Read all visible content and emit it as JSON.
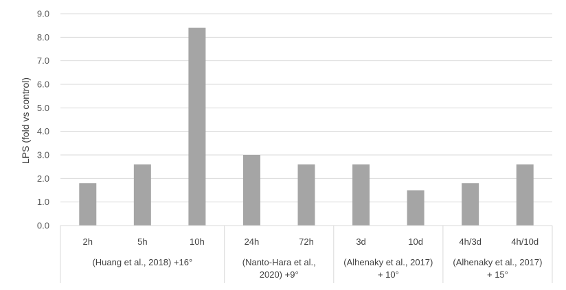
{
  "chart_data": {
    "type": "bar",
    "ylabel": "LPS (fold vs control)",
    "ylim": [
      0,
      9
    ],
    "yticks": [
      "0.0",
      "1.0",
      "2.0",
      "3.0",
      "4.0",
      "5.0",
      "6.0",
      "7.0",
      "8.0",
      "9.0"
    ],
    "grid": true,
    "bar_color": "#a5a5a5",
    "categories": [
      "2h",
      "5h",
      "10h",
      "24h",
      "72h",
      "3d",
      "10d",
      "4h/3d",
      "4h/10d"
    ],
    "values": [
      1.8,
      2.6,
      8.4,
      3.0,
      2.6,
      2.6,
      1.5,
      1.8,
      2.6
    ],
    "groups": [
      {
        "lines": [
          "(Huang et al., 2018) +16°"
        ],
        "count": 3
      },
      {
        "lines": [
          "(Nanto-Hara et al.,",
          "2020) +9°"
        ],
        "count": 2
      },
      {
        "lines": [
          "(Alhenaky et al., 2017)",
          "+ 10°"
        ],
        "count": 2
      },
      {
        "lines": [
          "(Alhenaky et al., 2017)",
          "+ 15°"
        ],
        "count": 2
      }
    ]
  }
}
